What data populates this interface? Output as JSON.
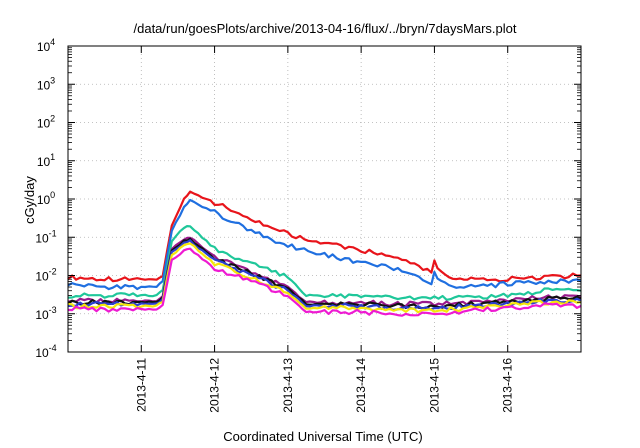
{
  "chart_data": {
    "type": "line",
    "title": "/data/run/goesPlots/archive/2013-04-16/flux/../bryn/7daysMars.plot",
    "xlabel": "Coordinated Universal Time (UTC)",
    "ylabel": "cGy/day",
    "yscale": "log",
    "ylim": [
      0.0001,
      10000
    ],
    "xlim": [
      "2013-04-10T00:00",
      "2013-04-17T00:00"
    ],
    "grid": true,
    "legend": "none",
    "y_ticks": [
      {
        "base": "10",
        "exp": "-4",
        "value": 0.0001
      },
      {
        "base": "10",
        "exp": "-3",
        "value": 0.001
      },
      {
        "base": "10",
        "exp": "-2",
        "value": 0.01
      },
      {
        "base": "10",
        "exp": "-1",
        "value": 0.1
      },
      {
        "base": "10",
        "exp": "0",
        "value": 1
      },
      {
        "base": "10",
        "exp": "1",
        "value": 10
      },
      {
        "base": "10",
        "exp": "2",
        "value": 100
      },
      {
        "base": "10",
        "exp": "3",
        "value": 1000
      },
      {
        "base": "10",
        "exp": "4",
        "value": 10000
      }
    ],
    "x_ticks": [
      {
        "label": "2013-4-11",
        "value": "2013-04-11T00:00"
      },
      {
        "label": "2013-4-12",
        "value": "2013-04-12T00:00"
      },
      {
        "label": "2013-4-13",
        "value": "2013-04-13T00:00"
      },
      {
        "label": "2013-4-14",
        "value": "2013-04-14T00:00"
      },
      {
        "label": "2013-4-15",
        "value": "2013-04-15T00:00"
      },
      {
        "label": "2013-4-16",
        "value": "2013-04-16T00:00"
      }
    ],
    "series": [
      {
        "color": "#e8141b",
        "x": [
          "2013-04-10T00:00",
          "2013-04-10T12:00",
          "2013-04-11T00:00",
          "2013-04-11T05:00",
          "2013-04-11T07:00",
          "2013-04-11T10:00",
          "2013-04-11T14:00",
          "2013-04-11T16:00",
          "2013-04-12T00:00",
          "2013-04-12T12:00",
          "2013-04-13T00:00",
          "2013-04-13T12:00",
          "2013-04-14T00:00",
          "2013-04-14T12:00",
          "2013-04-14T23:00",
          "2013-04-15T00:00",
          "2013-04-15T01:00",
          "2013-04-15T06:00",
          "2013-04-15T12:00",
          "2013-04-16T00:00",
          "2013-04-16T12:00",
          "2013-04-17T00:00"
        ],
        "y": [
          0.009,
          0.008,
          0.008,
          0.008,
          0.01,
          0.2,
          1.0,
          1.5,
          0.8,
          0.3,
          0.12,
          0.07,
          0.045,
          0.03,
          0.012,
          0.025,
          0.015,
          0.008,
          0.008,
          0.008,
          0.009,
          0.01
        ]
      },
      {
        "color": "#1f6fe0",
        "x": [
          "2013-04-10T00:00",
          "2013-04-10T12:00",
          "2013-04-11T00:00",
          "2013-04-11T05:00",
          "2013-04-11T07:00",
          "2013-04-11T10:00",
          "2013-04-11T14:00",
          "2013-04-11T16:00",
          "2013-04-12T00:00",
          "2013-04-12T12:00",
          "2013-04-13T00:00",
          "2013-04-13T12:00",
          "2013-04-14T00:00",
          "2013-04-14T12:00",
          "2013-04-14T23:00",
          "2013-04-15T00:00",
          "2013-04-15T01:00",
          "2013-04-15T06:00",
          "2013-04-15T12:00",
          "2013-04-16T00:00",
          "2013-04-16T12:00",
          "2013-04-17T00:00"
        ],
        "y": [
          0.006,
          0.005,
          0.005,
          0.005,
          0.007,
          0.15,
          0.6,
          0.9,
          0.45,
          0.15,
          0.06,
          0.035,
          0.022,
          0.015,
          0.006,
          0.012,
          0.008,
          0.005,
          0.005,
          0.006,
          0.007,
          0.007
        ]
      },
      {
        "color": "#1fc79a",
        "x": [
          "2013-04-10T00:00",
          "2013-04-10T12:00",
          "2013-04-11T00:00",
          "2013-04-11T05:00",
          "2013-04-11T07:00",
          "2013-04-11T10:00",
          "2013-04-11T14:00",
          "2013-04-11T16:00",
          "2013-04-12T00:00",
          "2013-04-12T12:00",
          "2013-04-13T00:00",
          "2013-04-13T06:00",
          "2013-04-13T12:00",
          "2013-04-14T00:00",
          "2013-04-14T12:00",
          "2013-04-15T00:00",
          "2013-04-15T12:00",
          "2013-04-16T00:00",
          "2013-04-16T12:00",
          "2013-04-17T00:00"
        ],
        "y": [
          0.003,
          0.003,
          0.003,
          0.003,
          0.004,
          0.08,
          0.18,
          0.2,
          0.05,
          0.02,
          0.009,
          0.003,
          0.003,
          0.0028,
          0.0025,
          0.0025,
          0.0028,
          0.003,
          0.004,
          0.004
        ]
      },
      {
        "color": "#9a1a8c",
        "x": [
          "2013-04-10T00:00",
          "2013-04-10T12:00",
          "2013-04-11T00:00",
          "2013-04-11T05:00",
          "2013-04-11T07:00",
          "2013-04-11T10:00",
          "2013-04-11T14:00",
          "2013-04-11T16:00",
          "2013-04-12T00:00",
          "2013-04-12T12:00",
          "2013-04-13T00:00",
          "2013-04-13T06:00",
          "2013-04-13T12:00",
          "2013-04-14T00:00",
          "2013-04-14T12:00",
          "2013-04-15T00:00",
          "2013-04-15T12:00",
          "2013-04-16T00:00",
          "2013-04-16T12:00",
          "2013-04-17T00:00"
        ],
        "y": [
          0.0022,
          0.0022,
          0.0022,
          0.0022,
          0.003,
          0.05,
          0.09,
          0.1,
          0.03,
          0.012,
          0.005,
          0.002,
          0.002,
          0.002,
          0.0018,
          0.0018,
          0.002,
          0.0022,
          0.0028,
          0.0028
        ]
      },
      {
        "color": "#111111",
        "x": [
          "2013-04-10T00:00",
          "2013-04-10T12:00",
          "2013-04-11T00:00",
          "2013-04-11T05:00",
          "2013-04-11T07:00",
          "2013-04-11T10:00",
          "2013-04-11T14:00",
          "2013-04-11T16:00",
          "2013-04-12T00:00",
          "2013-04-12T12:00",
          "2013-04-13T00:00",
          "2013-04-13T06:00",
          "2013-04-13T12:00",
          "2013-04-14T00:00",
          "2013-04-14T12:00",
          "2013-04-15T00:00",
          "2013-04-15T12:00",
          "2013-04-16T00:00",
          "2013-04-16T12:00",
          "2013-04-17T00:00"
        ],
        "y": [
          0.002,
          0.002,
          0.002,
          0.002,
          0.0027,
          0.045,
          0.08,
          0.09,
          0.027,
          0.011,
          0.0045,
          0.0018,
          0.0018,
          0.0018,
          0.0016,
          0.0016,
          0.0018,
          0.002,
          0.0025,
          0.0025
        ]
      },
      {
        "color": "#2a3fd0",
        "x": [
          "2013-04-10T00:00",
          "2013-04-10T12:00",
          "2013-04-11T00:00",
          "2013-04-11T05:00",
          "2013-04-11T07:00",
          "2013-04-11T10:00",
          "2013-04-11T14:00",
          "2013-04-11T16:00",
          "2013-04-12T00:00",
          "2013-04-12T12:00",
          "2013-04-13T00:00",
          "2013-04-13T06:00",
          "2013-04-13T12:00",
          "2013-04-14T00:00",
          "2013-04-14T12:00",
          "2013-04-15T00:00",
          "2013-04-15T12:00",
          "2013-04-16T00:00",
          "2013-04-16T12:00",
          "2013-04-17T00:00"
        ],
        "y": [
          0.0018,
          0.0018,
          0.0018,
          0.0018,
          0.0024,
          0.04,
          0.07,
          0.08,
          0.024,
          0.01,
          0.004,
          0.0016,
          0.0016,
          0.0016,
          0.0014,
          0.0014,
          0.0016,
          0.0018,
          0.0022,
          0.0022
        ]
      },
      {
        "color": "#f5e60a",
        "x": [
          "2013-04-10T00:00",
          "2013-04-10T12:00",
          "2013-04-11T00:00",
          "2013-04-11T05:00",
          "2013-04-11T07:00",
          "2013-04-11T10:00",
          "2013-04-11T14:00",
          "2013-04-11T16:00",
          "2013-04-12T00:00",
          "2013-04-12T12:00",
          "2013-04-13T00:00",
          "2013-04-13T06:00",
          "2013-04-13T12:00",
          "2013-04-14T00:00",
          "2013-04-14T12:00",
          "2013-04-15T00:00",
          "2013-04-15T12:00",
          "2013-04-16T00:00",
          "2013-04-16T12:00",
          "2013-04-17T00:00"
        ],
        "y": [
          0.0016,
          0.0016,
          0.0016,
          0.0016,
          0.0021,
          0.035,
          0.06,
          0.07,
          0.02,
          0.009,
          0.0035,
          0.0014,
          0.0014,
          0.0014,
          0.0012,
          0.0012,
          0.0014,
          0.0016,
          0.002,
          0.002
        ]
      },
      {
        "color": "#ee1ad2",
        "x": [
          "2013-04-10T00:00",
          "2013-04-10T12:00",
          "2013-04-11T00:00",
          "2013-04-11T05:00",
          "2013-04-11T07:00",
          "2013-04-11T10:00",
          "2013-04-11T14:00",
          "2013-04-11T16:00",
          "2013-04-12T00:00",
          "2013-04-12T12:00",
          "2013-04-13T00:00",
          "2013-04-13T06:00",
          "2013-04-13T12:00",
          "2013-04-14T00:00",
          "2013-04-14T12:00",
          "2013-04-15T00:00",
          "2013-04-15T12:00",
          "2013-04-16T00:00",
          "2013-04-16T12:00",
          "2013-04-17T00:00"
        ],
        "y": [
          0.0014,
          0.0013,
          0.0013,
          0.0013,
          0.0017,
          0.025,
          0.045,
          0.05,
          0.015,
          0.007,
          0.0028,
          0.0011,
          0.0011,
          0.0011,
          0.001,
          0.001,
          0.0012,
          0.0014,
          0.0017,
          0.0016
        ]
      }
    ]
  }
}
